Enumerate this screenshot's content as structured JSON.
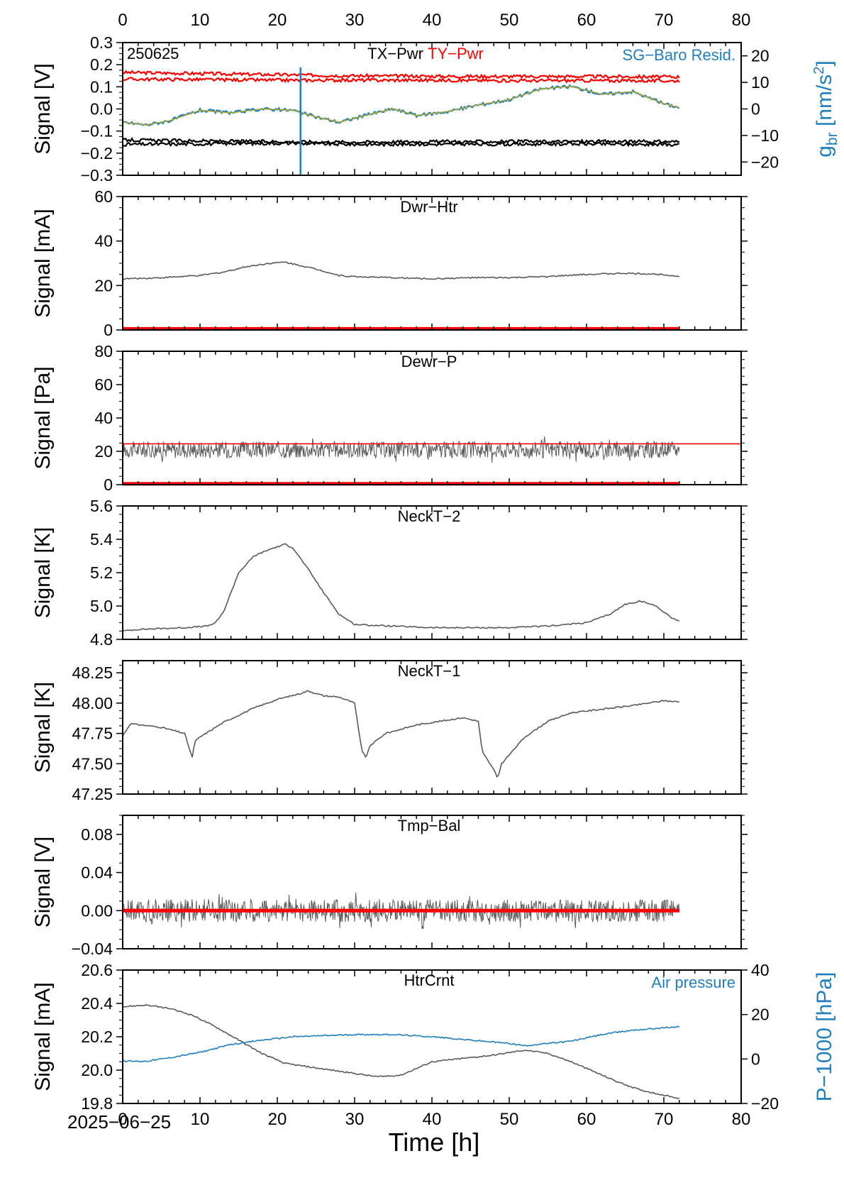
{
  "figure": {
    "date_label": "2025−06−25",
    "xlabel": "Time [h]",
    "xlim": [
      0,
      80
    ],
    "xticks": [
      0,
      10,
      20,
      30,
      40,
      50,
      60,
      70,
      80
    ],
    "colors": {
      "black": "#000000",
      "red": "#ff0000",
      "blue": "#1f7fbf",
      "gray": "#5a5a5a",
      "olive": "#a8a63a"
    }
  },
  "chart_data": [
    {
      "type": "line",
      "panel_id": "p1",
      "corner_label": "250625",
      "title_parts": [
        "TX−Pwr",
        "TY−Pwr"
      ],
      "right_title": "SG−Baro Resid.",
      "ylabel": "Signal [V]",
      "ylim": [
        -0.3,
        0.3
      ],
      "yticks": [
        -0.3,
        -0.2,
        -0.1,
        0.0,
        0.1,
        0.2,
        0.3
      ],
      "ytick_labels": [
        "−0.3",
        "−0.2",
        "−0.1",
        "0.0",
        "0.1",
        "0.2",
        "0.3"
      ],
      "y2label": "g_br [nm/s2]",
      "y2lim": [
        -25,
        25
      ],
      "y2ticks": [
        -20,
        -10,
        0,
        10,
        20
      ],
      "y2tick_labels": [
        "−20",
        "−10",
        "0",
        "10",
        "20"
      ],
      "series": [
        {
          "name": "TY−Pwr",
          "color": "red",
          "axis": "y",
          "x": [
            0,
            10,
            20,
            30,
            40,
            50,
            60,
            72
          ],
          "y": [
            0.165,
            0.16,
            0.155,
            0.15,
            0.148,
            0.147,
            0.147,
            0.145
          ]
        },
        {
          "color": "red",
          "axis": "y",
          "x": [
            0,
            10,
            20,
            30,
            40,
            50,
            60,
            72
          ],
          "y": [
            0.135,
            0.133,
            0.13,
            0.13,
            0.13,
            0.128,
            0.128,
            0.127
          ]
        },
        {
          "color": "black",
          "axis": "y",
          "x": [
            0,
            10,
            20,
            30,
            40,
            50,
            60,
            72
          ],
          "y": [
            -0.14,
            -0.145,
            -0.148,
            -0.15,
            -0.148,
            -0.148,
            -0.147,
            -0.148
          ]
        },
        {
          "name": "TX−Pwr",
          "color": "black",
          "axis": "y",
          "x": [
            0,
            10,
            20,
            30,
            40,
            50,
            60,
            72
          ],
          "y": [
            -0.16,
            -0.158,
            -0.155,
            -0.16,
            -0.16,
            -0.16,
            -0.158,
            -0.162
          ]
        },
        {
          "name": "SG−Baro Resid.",
          "color": "blue",
          "axis": "y2",
          "x": [
            0,
            3,
            6,
            10,
            14,
            18,
            22,
            25,
            28,
            32,
            35,
            38,
            42,
            46,
            50,
            54,
            58,
            62,
            66,
            70,
            72
          ],
          "y": [
            -5,
            -6,
            -4.5,
            -0.5,
            -1.5,
            0,
            -0.5,
            -3,
            -5,
            -2,
            0,
            -2.5,
            -1,
            1.5,
            3.5,
            7.5,
            8.5,
            5.5,
            6.5,
            2,
            0.5
          ]
        }
      ]
    },
    {
      "type": "line",
      "panel_id": "p2",
      "title": "Dwr−Htr",
      "ylabel": "Signal [mA]",
      "ylim": [
        0,
        60
      ],
      "yticks": [
        0,
        20,
        40,
        60
      ],
      "ytick_labels": [
        "0",
        "20",
        "40",
        "60"
      ],
      "series": [
        {
          "color": "gray",
          "x": [
            0,
            5,
            10,
            13,
            16,
            19,
            21,
            23,
            26,
            28,
            30,
            35,
            40,
            45,
            50,
            55,
            60,
            65,
            70,
            72
          ],
          "y": [
            23,
            23.5,
            24.5,
            26,
            28.5,
            30,
            30.5,
            29,
            26.5,
            24.5,
            24,
            23.5,
            23,
            23.5,
            23.5,
            24,
            25,
            25.5,
            25,
            24
          ]
        },
        {
          "color": "red",
          "thick": true,
          "x": [
            0,
            72
          ],
          "y": [
            0.5,
            0.5
          ]
        }
      ]
    },
    {
      "type": "line",
      "panel_id": "p3",
      "title": "Dewr−P",
      "ylabel": "Signal [Pa]",
      "ylim": [
        0,
        80
      ],
      "yticks": [
        0,
        20,
        40,
        60,
        80
      ],
      "ytick_labels": [
        "0",
        "20",
        "40",
        "60",
        "80"
      ],
      "series": [
        {
          "color": "gray",
          "noise_band": true,
          "x": [
            0,
            72
          ],
          "y": [
            21,
            21
          ]
        },
        {
          "color": "red",
          "x": [
            0,
            80
          ],
          "y": [
            24.5,
            24.5
          ]
        },
        {
          "color": "red",
          "thick": true,
          "x": [
            0,
            72
          ],
          "y": [
            0.5,
            0.5
          ]
        }
      ]
    },
    {
      "type": "line",
      "panel_id": "p4",
      "title": "NeckT−2",
      "ylabel": "Signal [K]",
      "ylim": [
        4.8,
        5.6
      ],
      "yticks": [
        4.8,
        5.0,
        5.2,
        5.4,
        5.6
      ],
      "ytick_labels": [
        "4.8",
        "5.0",
        "5.2",
        "5.4",
        "5.6"
      ],
      "series": [
        {
          "color": "gray",
          "x": [
            0,
            2,
            8,
            11,
            12,
            13,
            14,
            15,
            17,
            19,
            21,
            22,
            24,
            26,
            28,
            30,
            32,
            40,
            50,
            55,
            60,
            63,
            65,
            67,
            69,
            71,
            72
          ],
          "y": [
            4.85,
            4.86,
            4.87,
            4.88,
            4.9,
            4.96,
            5.08,
            5.2,
            5.3,
            5.34,
            5.37,
            5.35,
            5.22,
            5.08,
            4.95,
            4.89,
            4.885,
            4.87,
            4.87,
            4.88,
            4.9,
            4.95,
            5.01,
            5.03,
            5.0,
            4.93,
            4.91
          ]
        }
      ]
    },
    {
      "type": "line",
      "panel_id": "p5",
      "title": "NeckT−1",
      "ylabel": "Signal [K]",
      "ylim": [
        47.25,
        48.35
      ],
      "yticks": [
        47.25,
        47.5,
        47.75,
        48.0,
        48.25
      ],
      "ytick_labels": [
        "47.25",
        "47.50",
        "47.75",
        "48.00",
        "48.25"
      ],
      "series": [
        {
          "color": "gray",
          "x": [
            0,
            1,
            5,
            8,
            9,
            9.3,
            10,
            13,
            17,
            20,
            23,
            24,
            26,
            28,
            30,
            30.5,
            31,
            31.5,
            32,
            34,
            38,
            42,
            44,
            46,
            46.5,
            47,
            48,
            48.5,
            49,
            52,
            55,
            58,
            62,
            66,
            70,
            72
          ],
          "y": [
            47.73,
            47.83,
            47.8,
            47.75,
            47.55,
            47.68,
            47.72,
            47.84,
            47.96,
            48.03,
            48.08,
            48.1,
            48.06,
            48.05,
            48.0,
            47.78,
            47.6,
            47.55,
            47.65,
            47.75,
            47.82,
            47.86,
            47.88,
            47.85,
            47.6,
            47.55,
            47.45,
            47.38,
            47.5,
            47.72,
            47.85,
            47.92,
            47.95,
            47.98,
            48.02,
            48.01
          ]
        }
      ]
    },
    {
      "type": "line",
      "panel_id": "p6",
      "title": "Tmp−Bal",
      "ylabel": "Signal [V]",
      "ylim": [
        -0.04,
        0.1
      ],
      "yticks": [
        -0.04,
        0.0,
        0.04,
        0.08
      ],
      "ytick_labels": [
        "−0.04",
        "0.00",
        "0.04",
        "0.08"
      ],
      "series": [
        {
          "color": "gray",
          "noise_band": true,
          "x": [
            0,
            72
          ],
          "y": [
            0.0,
            0.0
          ]
        },
        {
          "color": "red",
          "thick": true,
          "x": [
            0,
            72
          ],
          "y": [
            0.0,
            0.0
          ]
        }
      ]
    },
    {
      "type": "line",
      "panel_id": "p7",
      "title": "HtrCrnt",
      "right_title": "Air pressure",
      "ylabel": "Signal [mA]",
      "ylim": [
        19.8,
        20.6
      ],
      "yticks": [
        19.8,
        20.0,
        20.2,
        20.4,
        20.6
      ],
      "ytick_labels": [
        "19.8",
        "20.0",
        "20.2",
        "20.4",
        "20.6"
      ],
      "y2label": "P−1000 [hPa]",
      "y2lim": [
        -20,
        40
      ],
      "y2ticks": [
        -20,
        0,
        20,
        40
      ],
      "y2tick_labels": [
        "−20",
        "0",
        "20",
        "40"
      ],
      "series": [
        {
          "name": "HtrCrnt",
          "color": "gray",
          "axis": "y",
          "x": [
            0,
            3,
            6,
            9,
            12,
            15,
            18,
            21,
            24,
            27,
            30,
            33,
            36,
            40,
            44,
            48,
            52,
            55,
            58,
            61,
            64,
            67,
            70,
            72
          ],
          "y": [
            20.38,
            20.39,
            20.37,
            20.33,
            20.26,
            20.18,
            20.1,
            20.04,
            20.02,
            20.0,
            19.98,
            19.96,
            19.97,
            20.05,
            20.07,
            20.09,
            20.12,
            20.1,
            20.05,
            19.99,
            19.93,
            19.88,
            19.85,
            19.83
          ]
        },
        {
          "name": "Air pressure",
          "color": "blue",
          "axis": "y2",
          "x": [
            0,
            3,
            6,
            10,
            14,
            18,
            22,
            26,
            30,
            35,
            40,
            45,
            50,
            52,
            55,
            58,
            62,
            66,
            70,
            72
          ],
          "y": [
            -1,
            -1,
            0.5,
            3,
            6.5,
            8.5,
            10,
            10.5,
            11,
            11,
            10,
            8.5,
            7,
            6,
            7,
            8,
            11,
            13,
            14,
            14.5
          ]
        }
      ]
    }
  ]
}
